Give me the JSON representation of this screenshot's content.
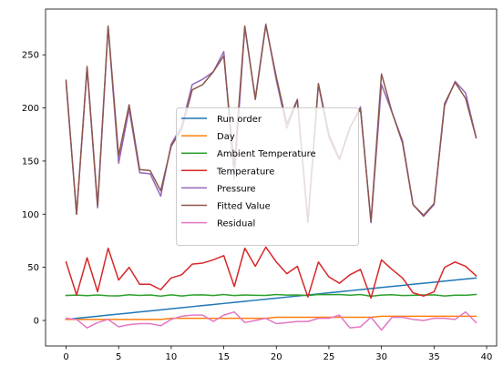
{
  "chart_data": {
    "type": "line",
    "title": "",
    "xlabel": "",
    "ylabel": "",
    "xlim": [
      -1.95,
      40.95
    ],
    "ylim": [
      -24,
      293
    ],
    "x_ticks": [
      0,
      5,
      10,
      15,
      20,
      25,
      30,
      35,
      40
    ],
    "y_ticks": [
      0,
      50,
      100,
      150,
      200,
      250
    ],
    "grid": false,
    "legend_position": "center",
    "x": [
      0,
      1,
      2,
      3,
      4,
      5,
      6,
      7,
      8,
      9,
      10,
      11,
      12,
      13,
      14,
      15,
      16,
      17,
      18,
      19,
      20,
      21,
      22,
      23,
      24,
      25,
      26,
      27,
      28,
      29,
      30,
      31,
      32,
      33,
      34,
      35,
      36,
      37,
      38,
      39
    ],
    "series": [
      {
        "name": "Run order",
        "color": "#1f77b4",
        "values": [
          1,
          2,
          3,
          4,
          5,
          6,
          7,
          8,
          9,
          10,
          11,
          12,
          13,
          14,
          15,
          16,
          17,
          18,
          19,
          20,
          21,
          22,
          23,
          24,
          25,
          26,
          27,
          28,
          29,
          30,
          31,
          32,
          33,
          34,
          35,
          36,
          37,
          38,
          39,
          40
        ]
      },
      {
        "name": "Day",
        "color": "#ff7f0e",
        "values": [
          1,
          1,
          1,
          1,
          1,
          1,
          1,
          1,
          1,
          1,
          2,
          2,
          2,
          2,
          2,
          2,
          2,
          2,
          2,
          2,
          3,
          3,
          3,
          3,
          3,
          3,
          3,
          3,
          3,
          3,
          4,
          4,
          4,
          4,
          4,
          4,
          4,
          4,
          4,
          4
        ]
      },
      {
        "name": "Ambient Temperature",
        "color": "#2ca02c",
        "values": [
          23.5,
          23.9,
          23.3,
          24.0,
          23.2,
          23.1,
          24.2,
          23.6,
          24.0,
          22.9,
          24.1,
          23.0,
          24.0,
          24.1,
          23.4,
          24.4,
          23.4,
          24.0,
          23.7,
          23.6,
          24.4,
          23.9,
          24.0,
          23.4,
          24.4,
          24.3,
          24.4,
          23.8,
          24.4,
          22.8,
          23.9,
          24.2,
          23.4,
          23.7,
          24.0,
          24.1,
          23.0,
          23.8,
          23.7,
          24.5
        ]
      },
      {
        "name": "Temperature",
        "color": "#d62728",
        "values": [
          55,
          24,
          59,
          27,
          68,
          38,
          50,
          34,
          34,
          29,
          40,
          43,
          53,
          54,
          57,
          61,
          32,
          68,
          51,
          69,
          55,
          44,
          51,
          22,
          55,
          41,
          35,
          43,
          48,
          21,
          57,
          48,
          40,
          26,
          23,
          27,
          50,
          55,
          51,
          42
        ]
      },
      {
        "name": "Pressure",
        "color": "#9467bd",
        "values": [
          224,
          100,
          237,
          106,
          276,
          148,
          199,
          139,
          138,
          117,
          166,
          183,
          222,
          227,
          234,
          253,
          133,
          276,
          209,
          279,
          226,
          181,
          207,
          92,
          222,
          172,
          151,
          181,
          201,
          92,
          222,
          196,
          169,
          109,
          98,
          109,
          202,
          225,
          214,
          172
        ]
      },
      {
        "name": "Fitted Value",
        "color": "#8c564b",
        "values": [
          226,
          100,
          239,
          108,
          277,
          155,
          203,
          142,
          141,
          122,
          164,
          180,
          217,
          222,
          234,
          249,
          146,
          277,
          208,
          278,
          229,
          185,
          208,
          93,
          223,
          175,
          152,
          182,
          199,
          93,
          232,
          196,
          167,
          109,
          99,
          110,
          204,
          224,
          209,
          172
        ]
      },
      {
        "name": "Residual",
        "color": "#e377c2",
        "values": [
          2,
          1,
          -7,
          -2,
          1,
          -6,
          -4,
          -3,
          -3,
          -5,
          1,
          4,
          5,
          5,
          -1,
          5,
          8,
          -2,
          0,
          2,
          -3,
          -2,
          -1,
          -1,
          2,
          2,
          5,
          -7,
          -6,
          3,
          -9,
          3,
          3,
          1,
          0,
          2,
          2,
          1,
          8,
          -2
        ]
      }
    ]
  }
}
